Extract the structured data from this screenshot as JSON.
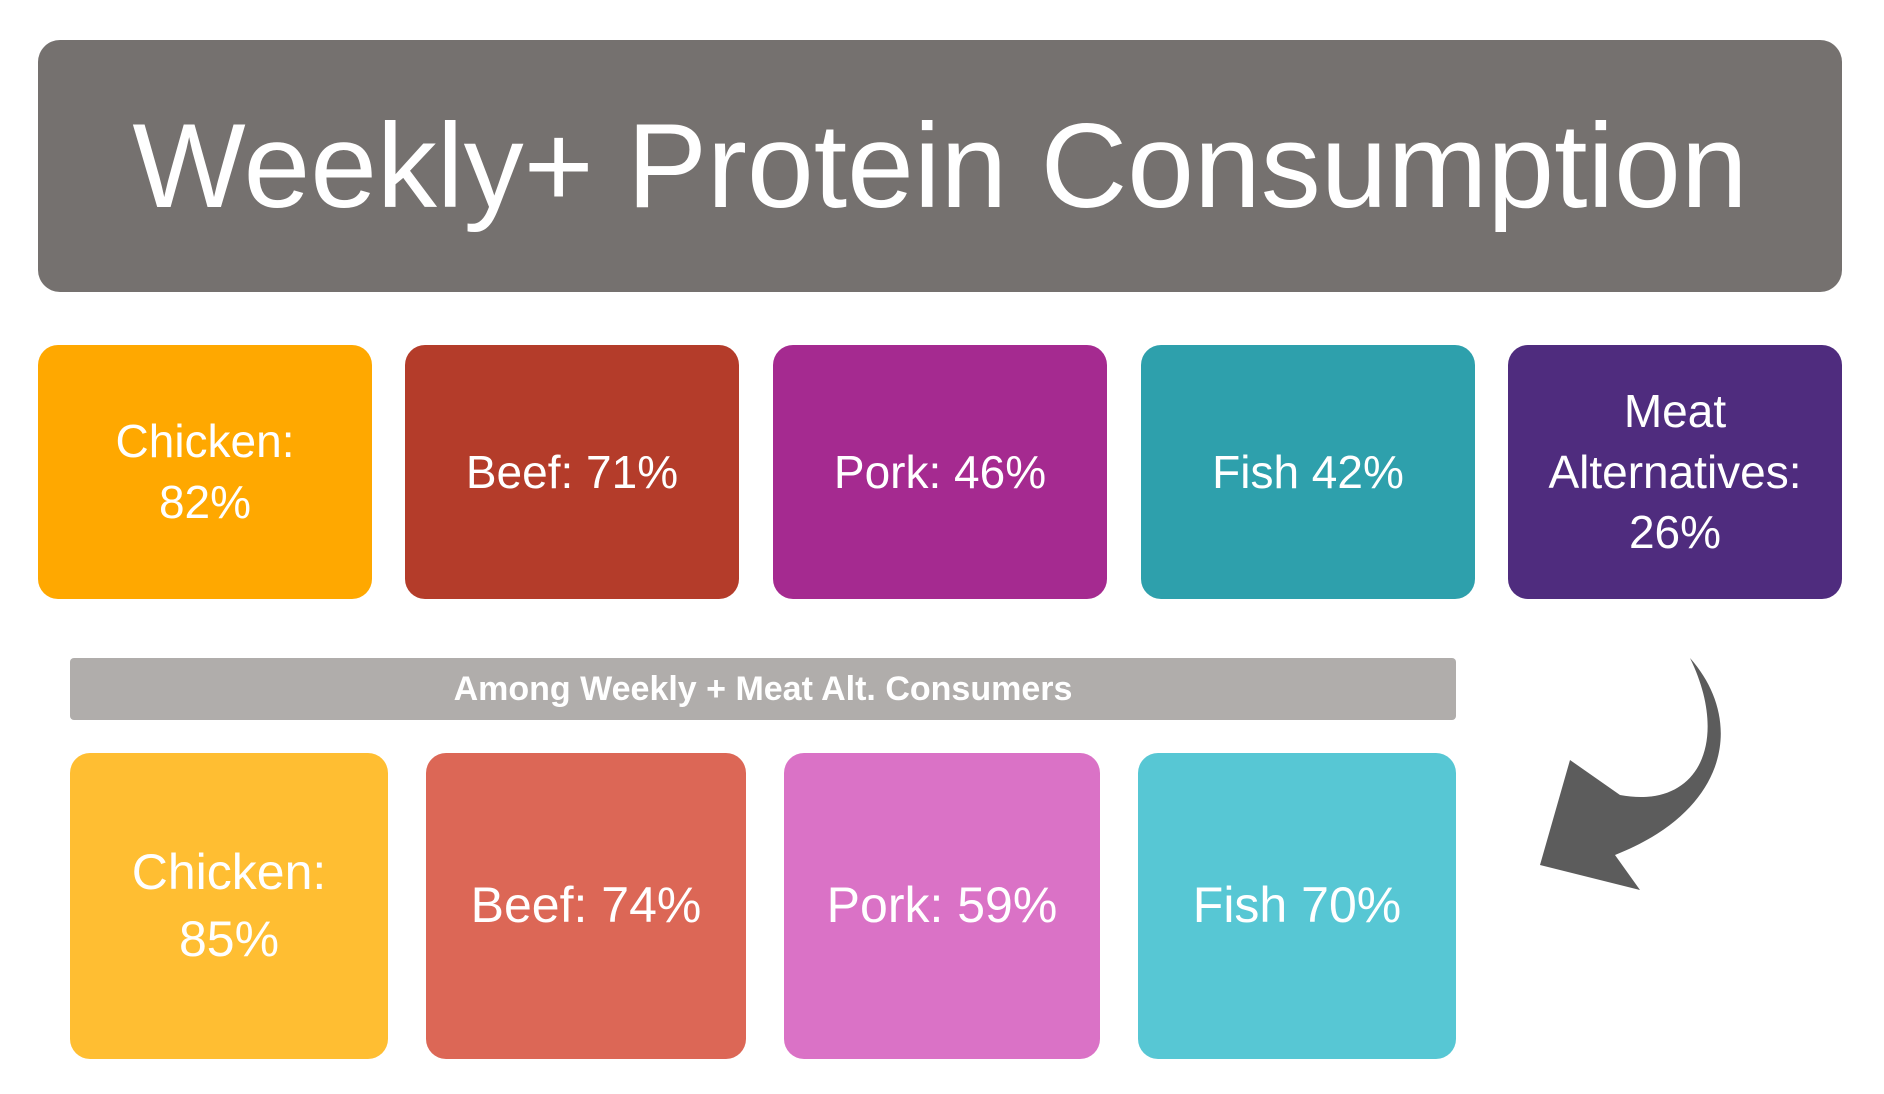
{
  "title": "Weekly+ Protein Consumption",
  "top_tiles": [
    {
      "lines": [
        "Chicken:",
        "82%"
      ],
      "color": "#ffa800"
    },
    {
      "lines": [
        "Beef: 71%"
      ],
      "color": "#b43c2a"
    },
    {
      "lines": [
        "Pork: 46%"
      ],
      "color": "#a52a90"
    },
    {
      "lines": [
        "Fish 42%"
      ],
      "color": "#2ea0ac"
    },
    {
      "lines": [
        "Meat",
        "Alternatives:",
        "26%"
      ],
      "color": "#4f2c7e"
    }
  ],
  "subheader": "Among Weekly + Meat Alt. Consumers",
  "bottom_tiles": [
    {
      "lines": [
        "Chicken:",
        "85%"
      ],
      "color": "#ffbe32"
    },
    {
      "lines": [
        "Beef: 74%"
      ],
      "color": "#dc6756"
    },
    {
      "lines": [
        "Pork: 59%"
      ],
      "color": "#da72c6"
    },
    {
      "lines": [
        "Fish 70%"
      ],
      "color": "#57c7d4"
    }
  ],
  "colors": {
    "title_banner": "#75716f",
    "subheader_bar": "#b0adab",
    "arrow": "#5c5c5c"
  },
  "icons": {
    "arrow": "curved-arrow-icon"
  }
}
